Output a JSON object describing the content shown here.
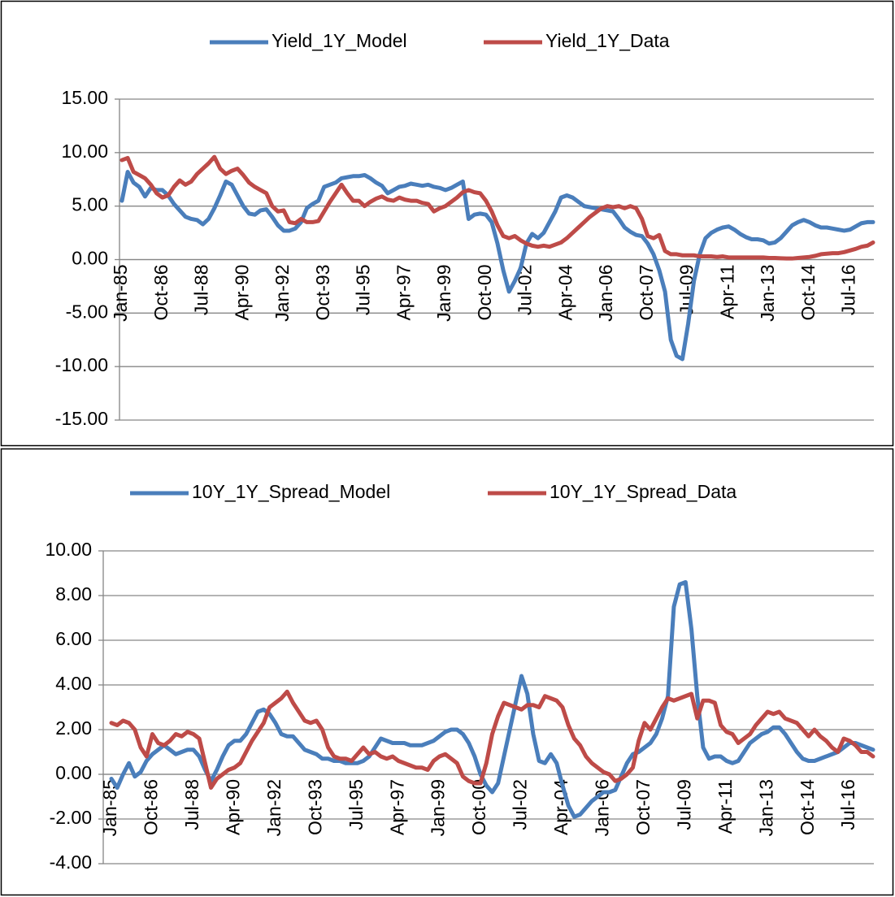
{
  "chart_data": [
    {
      "type": "line",
      "categories": [
        "Jan-85",
        null,
        null,
        null,
        null,
        null,
        null,
        "Oct-86",
        null,
        null,
        null,
        null,
        null,
        null,
        "Jul-88",
        null,
        null,
        null,
        null,
        null,
        null,
        "Apr-90",
        null,
        null,
        null,
        null,
        null,
        null,
        "Jan-92",
        null,
        null,
        null,
        null,
        null,
        null,
        "Oct-93",
        null,
        null,
        null,
        null,
        null,
        null,
        "Jul-95",
        null,
        null,
        null,
        null,
        null,
        null,
        "Apr-97",
        null,
        null,
        null,
        null,
        null,
        null,
        "Jan-99",
        null,
        null,
        null,
        null,
        null,
        null,
        "Oct-00",
        null,
        null,
        null,
        null,
        null,
        null,
        "Jul-02",
        null,
        null,
        null,
        null,
        null,
        null,
        "Apr-04",
        null,
        null,
        null,
        null,
        null,
        null,
        "Jan-06",
        null,
        null,
        null,
        null,
        null,
        null,
        "Oct-07",
        null,
        null,
        null,
        null,
        null,
        null,
        "Jul-09",
        null,
        null,
        null,
        null,
        null,
        null,
        "Apr-11",
        null,
        null,
        null,
        null,
        null,
        null,
        "Jan-13",
        null,
        null,
        null,
        null,
        null,
        null,
        "Oct-14",
        null,
        null,
        null,
        null,
        null,
        null,
        "Jul-16",
        null,
        null,
        null,
        null
      ],
      "series": [
        {
          "name": "Yield_1Y_Model",
          "color": "#4a7ebb",
          "values": [
            5.5,
            8.2,
            7.2,
            6.8,
            5.9,
            6.7,
            6.5,
            6.5,
            6.0,
            5.2,
            4.6,
            4.0,
            3.8,
            3.7,
            3.3,
            3.8,
            4.8,
            6.0,
            7.3,
            7.0,
            6.0,
            5.0,
            4.3,
            4.2,
            4.6,
            4.7,
            4.0,
            3.2,
            2.7,
            2.7,
            2.9,
            3.5,
            4.8,
            5.2,
            5.5,
            6.8,
            7.0,
            7.2,
            7.6,
            7.7,
            7.8,
            7.8,
            7.9,
            7.6,
            7.2,
            6.9,
            6.2,
            6.5,
            6.8,
            6.9,
            7.1,
            7.0,
            6.9,
            7.0,
            6.8,
            6.7,
            6.5,
            6.7,
            7.0,
            7.3,
            3.8,
            4.2,
            4.3,
            4.2,
            3.5,
            1.5,
            -1.0,
            -3.0,
            -2.0,
            -0.8,
            1.5,
            2.4,
            2.0,
            2.5,
            3.5,
            4.5,
            5.8,
            6.0,
            5.8,
            5.4,
            5.0,
            4.9,
            4.8,
            4.7,
            4.6,
            4.5,
            3.8,
            3.0,
            2.6,
            2.3,
            2.2,
            1.5,
            0.5,
            -1.0,
            -3.0,
            -7.5,
            -9.0,
            -9.3,
            -6.0,
            -2.0,
            0.5,
            2.0,
            2.5,
            2.8,
            3.0,
            3.1,
            2.8,
            2.4,
            2.1,
            1.9,
            1.9,
            1.8,
            1.5,
            1.6,
            2.0,
            2.6,
            3.2,
            3.5,
            3.7,
            3.5,
            3.2,
            3.0,
            3.0,
            2.9,
            2.8,
            2.7,
            2.8,
            3.1,
            3.4,
            3.5,
            3.5
          ]
        },
        {
          "name": "Yield_1Y_Data",
          "color": "#be4b48",
          "values": [
            9.3,
            9.5,
            8.2,
            7.9,
            7.6,
            7.0,
            6.2,
            5.8,
            6.0,
            6.8,
            7.4,
            7.0,
            7.3,
            8.0,
            8.5,
            9.0,
            9.6,
            8.5,
            8.0,
            8.3,
            8.5,
            7.9,
            7.2,
            6.8,
            6.5,
            6.2,
            5.0,
            4.5,
            4.6,
            3.5,
            3.4,
            3.8,
            3.5,
            3.5,
            3.6,
            4.5,
            5.4,
            6.2,
            7.0,
            6.2,
            5.5,
            5.5,
            5.0,
            5.4,
            5.7,
            5.9,
            5.6,
            5.5,
            5.8,
            5.6,
            5.5,
            5.5,
            5.3,
            5.2,
            4.5,
            4.8,
            5.0,
            5.4,
            5.8,
            6.3,
            6.5,
            6.3,
            6.2,
            5.5,
            4.5,
            3.2,
            2.2,
            2.0,
            2.2,
            1.8,
            1.5,
            1.3,
            1.2,
            1.3,
            1.2,
            1.4,
            1.6,
            2.0,
            2.5,
            3.0,
            3.5,
            4.0,
            4.4,
            4.8,
            5.0,
            4.9,
            5.0,
            4.8,
            5.0,
            4.8,
            3.8,
            2.2,
            2.0,
            2.3,
            0.8,
            0.5,
            0.5,
            0.4,
            0.4,
            0.4,
            0.3,
            0.3,
            0.3,
            0.25,
            0.3,
            0.2,
            0.2,
            0.2,
            0.2,
            0.2,
            0.2,
            0.2,
            0.15,
            0.15,
            0.12,
            0.1,
            0.1,
            0.15,
            0.2,
            0.25,
            0.35,
            0.5,
            0.55,
            0.6,
            0.6,
            0.7,
            0.85,
            1.0,
            1.2,
            1.3,
            1.6
          ]
        }
      ],
      "ylim": [
        -15,
        15
      ],
      "yticks": [
        {
          "value": -15,
          "label": "-15.00"
        },
        {
          "value": -10,
          "label": "-10.00"
        },
        {
          "value": -5,
          "label": "-5.00"
        },
        {
          "value": 0,
          "label": "0.00"
        },
        {
          "value": 5,
          "label": "5.00"
        },
        {
          "value": 10,
          "label": "10.00"
        },
        {
          "value": 15,
          "label": "15.00"
        }
      ],
      "grid": true,
      "legend": "top"
    },
    {
      "type": "line",
      "categories": [
        "Jan-85",
        null,
        null,
        null,
        null,
        null,
        null,
        "Oct-86",
        null,
        null,
        null,
        null,
        null,
        null,
        "Jul-88",
        null,
        null,
        null,
        null,
        null,
        null,
        "Apr-90",
        null,
        null,
        null,
        null,
        null,
        null,
        "Jan-92",
        null,
        null,
        null,
        null,
        null,
        null,
        "Oct-93",
        null,
        null,
        null,
        null,
        null,
        null,
        "Jul-95",
        null,
        null,
        null,
        null,
        null,
        null,
        "Apr-97",
        null,
        null,
        null,
        null,
        null,
        null,
        "Jan-99",
        null,
        null,
        null,
        null,
        null,
        null,
        "Oct-00",
        null,
        null,
        null,
        null,
        null,
        null,
        "Jul-02",
        null,
        null,
        null,
        null,
        null,
        null,
        "Apr-04",
        null,
        null,
        null,
        null,
        null,
        null,
        "Jan-06",
        null,
        null,
        null,
        null,
        null,
        null,
        "Oct-07",
        null,
        null,
        null,
        null,
        null,
        null,
        "Jul-09",
        null,
        null,
        null,
        null,
        null,
        null,
        "Apr-11",
        null,
        null,
        null,
        null,
        null,
        null,
        "Jan-13",
        null,
        null,
        null,
        null,
        null,
        null,
        "Oct-14",
        null,
        null,
        null,
        null,
        null,
        null,
        "Jul-16",
        null,
        null,
        null,
        null
      ],
      "series": [
        {
          "name": "10Y_1Y_Spread_Model",
          "color": "#4a7ebb",
          "values": [
            -0.2,
            -0.6,
            0.0,
            0.5,
            -0.1,
            0.1,
            0.6,
            0.9,
            1.1,
            1.3,
            1.1,
            0.9,
            1.0,
            1.1,
            1.1,
            0.8,
            0.2,
            -0.3,
            0.2,
            0.8,
            1.3,
            1.5,
            1.5,
            1.8,
            2.3,
            2.8,
            2.9,
            2.7,
            2.3,
            1.8,
            1.7,
            1.7,
            1.4,
            1.1,
            1.0,
            0.9,
            0.7,
            0.7,
            0.6,
            0.6,
            0.5,
            0.5,
            0.5,
            0.6,
            0.8,
            1.2,
            1.6,
            1.5,
            1.4,
            1.4,
            1.4,
            1.3,
            1.3,
            1.3,
            1.4,
            1.5,
            1.7,
            1.9,
            2.0,
            2.0,
            1.8,
            1.4,
            0.8,
            0.0,
            -0.5,
            -0.8,
            -0.4,
            0.8,
            2.0,
            3.2,
            4.4,
            3.6,
            1.8,
            0.6,
            0.5,
            0.9,
            0.5,
            -0.5,
            -1.4,
            -1.9,
            -1.8,
            -1.5,
            -1.2,
            -1.0,
            -0.8,
            -0.8,
            -0.7,
            -0.1,
            0.5,
            0.9,
            1.0,
            1.2,
            1.4,
            1.8,
            2.5,
            3.5,
            7.5,
            8.5,
            8.6,
            6.5,
            3.5,
            1.2,
            0.7,
            0.8,
            0.8,
            0.6,
            0.5,
            0.6,
            1.0,
            1.4,
            1.6,
            1.8,
            1.9,
            2.1,
            2.1,
            1.8,
            1.4,
            1.0,
            0.7,
            0.6,
            0.6,
            0.7,
            0.8,
            0.9,
            1.0,
            1.2,
            1.4,
            1.4,
            1.3,
            1.2,
            1.1
          ]
        },
        {
          "name": "10Y_1Y_Spread_Data",
          "color": "#be4b48",
          "values": [
            2.3,
            2.2,
            2.4,
            2.3,
            2.0,
            1.2,
            0.8,
            1.8,
            1.4,
            1.3,
            1.5,
            1.8,
            1.7,
            1.9,
            1.8,
            1.6,
            0.5,
            -0.6,
            -0.2,
            0.0,
            0.2,
            0.3,
            0.5,
            1.0,
            1.5,
            1.9,
            2.3,
            3.0,
            3.2,
            3.4,
            3.7,
            3.2,
            2.8,
            2.4,
            2.3,
            2.4,
            2.0,
            1.2,
            0.8,
            0.7,
            0.7,
            0.6,
            0.9,
            1.2,
            0.9,
            1.0,
            0.8,
            0.7,
            0.8,
            0.6,
            0.5,
            0.4,
            0.3,
            0.3,
            0.2,
            0.6,
            0.8,
            0.9,
            0.7,
            0.5,
            -0.1,
            -0.3,
            -0.4,
            -0.4,
            0.5,
            1.8,
            2.6,
            3.2,
            3.1,
            3.0,
            2.9,
            3.1,
            3.1,
            3.0,
            3.5,
            3.4,
            3.3,
            3.0,
            2.2,
            1.6,
            1.3,
            0.8,
            0.5,
            0.3,
            0.1,
            0.0,
            -0.3,
            -0.2,
            0.0,
            0.3,
            1.5,
            2.3,
            2.0,
            2.5,
            3.0,
            3.4,
            3.3,
            3.4,
            3.5,
            3.6,
            2.5,
            3.3,
            3.3,
            3.2,
            2.2,
            1.9,
            1.8,
            1.4,
            1.6,
            1.8,
            2.2,
            2.5,
            2.8,
            2.7,
            2.8,
            2.5,
            2.4,
            2.3,
            2.0,
            1.7,
            2.0,
            1.7,
            1.5,
            1.2,
            1.0,
            1.6,
            1.5,
            1.3,
            1.0,
            1.0,
            0.8
          ]
        }
      ],
      "ylim": [
        -4,
        10
      ],
      "yticks": [
        {
          "value": -4,
          "label": "-4.00"
        },
        {
          "value": -2,
          "label": "-2.00"
        },
        {
          "value": 0,
          "label": "0.00"
        },
        {
          "value": 2,
          "label": "2.00"
        },
        {
          "value": 4,
          "label": "4.00"
        },
        {
          "value": 6,
          "label": "6.00"
        },
        {
          "value": 8,
          "label": "8.00"
        },
        {
          "value": 10,
          "label": "10.00"
        }
      ],
      "grid": true,
      "legend": "top"
    }
  ]
}
